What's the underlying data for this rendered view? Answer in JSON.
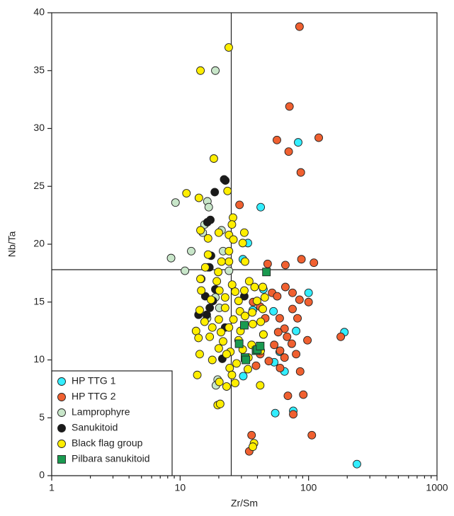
{
  "chart_data": {
    "type": "scatter",
    "x_label": "Zr/Sm",
    "y_label": "Nb/Ta",
    "xscale": "log",
    "xlim": [
      1,
      1000
    ],
    "xticks": [
      1,
      10,
      100,
      1000
    ],
    "ylim": [
      0,
      40
    ],
    "yticks": [
      0,
      5,
      10,
      15,
      20,
      25,
      30,
      35,
      40
    ],
    "vlines": [
      25
    ],
    "hlines": [
      17.8
    ],
    "legend": "lower left",
    "series": [
      {
        "name": "HP TTG 1",
        "color": "#33eeff",
        "marker": "circle",
        "x": [
          83,
          42.4,
          33.7,
          30.8,
          100,
          44.5,
          36.8,
          53.3,
          80,
          190,
          59.6,
          54,
          65,
          31,
          55,
          76,
          238
        ],
        "values": [
          28.8,
          23.2,
          20.1,
          18.7,
          15.8,
          16.1,
          14.3,
          14.2,
          12.5,
          12.4,
          10.7,
          9.8,
          9,
          8.6,
          5.4,
          5.6,
          1
        ]
      },
      {
        "name": "HP TTG 2",
        "color": "#f06030",
        "marker": "circle",
        "x": [
          85,
          71,
          120,
          56.7,
          70,
          87,
          29,
          88,
          110,
          66,
          48,
          66,
          75,
          52,
          57,
          37,
          42,
          85,
          100,
          75,
          59.6,
          46,
          82,
          65,
          44.5,
          58,
          68,
          98,
          54,
          74,
          60,
          42,
          80,
          49,
          65,
          39,
          60,
          86,
          178,
          69,
          91,
          76,
          106,
          36,
          34.5
        ],
        "values": [
          38.8,
          31.9,
          29.2,
          29,
          28,
          26.2,
          23.4,
          18.7,
          18.4,
          18.2,
          18.3,
          16.3,
          15.8,
          15.8,
          15.5,
          15,
          14.6,
          15.2,
          15,
          14.4,
          13.6,
          13.6,
          13.6,
          12.7,
          12.2,
          12.4,
          12,
          11.7,
          11.3,
          11.4,
          10.8,
          10.5,
          10.5,
          9.9,
          10.2,
          9.5,
          9.3,
          9,
          12,
          6.9,
          7,
          5.3,
          3.5,
          3.5,
          2.1
        ]
      },
      {
        "name": "Lamprophyre",
        "color": "#c8e6c9",
        "marker": "circle",
        "x": [
          18.8,
          9.2,
          16.3,
          16.7,
          15.5,
          21,
          15,
          8.5,
          12.2,
          10.9,
          16.5,
          14.6,
          21.6,
          24,
          18.8,
          20.2,
          16.2,
          19.6,
          19
        ],
        "values": [
          35,
          23.6,
          23.7,
          23.2,
          21.7,
          21.2,
          21,
          18.8,
          19.4,
          17.7,
          18,
          17,
          19.4,
          17.7,
          15.4,
          14.5,
          13.6,
          8.3,
          7.8
        ]
      },
      {
        "name": "Sanukitoid",
        "color": "#1a1a1a",
        "marker": "circle",
        "x": [
          22,
          22.5,
          18.6,
          17.2,
          16.3,
          17.4,
          16.9,
          18.8,
          15.7,
          18,
          17,
          13.9,
          16.1,
          22.4,
          31.6,
          21.3
        ],
        "values": [
          25.6,
          25.5,
          24.5,
          22.1,
          21.9,
          19,
          18,
          16.1,
          15.5,
          15.1,
          14.5,
          13.9,
          13.9,
          12.8,
          15.5,
          10.1
        ]
      },
      {
        "name": "Black flag group",
        "color": "#ffee00",
        "marker": "circle",
        "x": [
          14.4,
          23.9,
          18.3,
          11.2,
          14,
          23.4,
          25.8,
          25.3,
          31.6,
          24,
          20,
          16.5,
          14.4,
          26,
          24,
          30.7,
          16.5,
          32,
          24,
          21,
          19.8,
          15.7,
          14.4,
          34.5,
          38,
          25.4,
          19.3,
          14.6,
          20.2,
          26.8,
          31.6,
          44,
          45.6,
          39.7,
          28.5,
          22.4,
          17.4,
          22.4,
          29.2,
          36.4,
          44,
          14.2,
          32,
          26,
          20,
          15.5,
          36.8,
          42.4,
          24,
          17.8,
          13.3,
          20.8,
          29.5,
          44.5,
          17,
          13.9,
          21.6,
          28.5,
          36,
          20,
          24.6,
          30.7,
          42.4,
          14.2,
          23,
          34,
          17.8,
          27.5,
          24.3,
          33.7,
          13.6,
          25.3,
          20.2,
          26.8,
          23,
          42,
          19.6,
          20.5,
          37.6,
          36.8
        ],
        "values": [
          35,
          37,
          27.4,
          24.4,
          24,
          24.6,
          22.3,
          21.7,
          21,
          20.8,
          21,
          20.5,
          21.2,
          20.4,
          19.4,
          20.1,
          19.1,
          18.5,
          18.5,
          18.5,
          17.6,
          18,
          17,
          16.8,
          16.3,
          16.5,
          16.8,
          16,
          16,
          15.9,
          16,
          16.3,
          15.4,
          15.1,
          15.1,
          15.4,
          15.2,
          14.5,
          14.2,
          14.1,
          14.4,
          14.3,
          13.8,
          13.5,
          13.5,
          13.3,
          13.1,
          13.3,
          12.8,
          12.8,
          12.5,
          12.4,
          12.5,
          12.2,
          12,
          11.9,
          11.6,
          11.7,
          11.3,
          11,
          10.7,
          10.9,
          10.8,
          10.5,
          10.5,
          10.2,
          10,
          9.7,
          9.3,
          9.2,
          8.7,
          8.7,
          8.1,
          8,
          7.7,
          7.8,
          6.1,
          6.2,
          2.8,
          2.5
        ]
      },
      {
        "name": "Pilbara sanukitoid",
        "color": "#1a9a50",
        "marker": "square",
        "x": [
          47,
          31.6,
          28.8,
          32,
          32.5,
          39,
          40,
          42
        ],
        "values": [
          17.6,
          13,
          11.4,
          10.2,
          10,
          10.8,
          10.9,
          11.2
        ]
      }
    ]
  }
}
